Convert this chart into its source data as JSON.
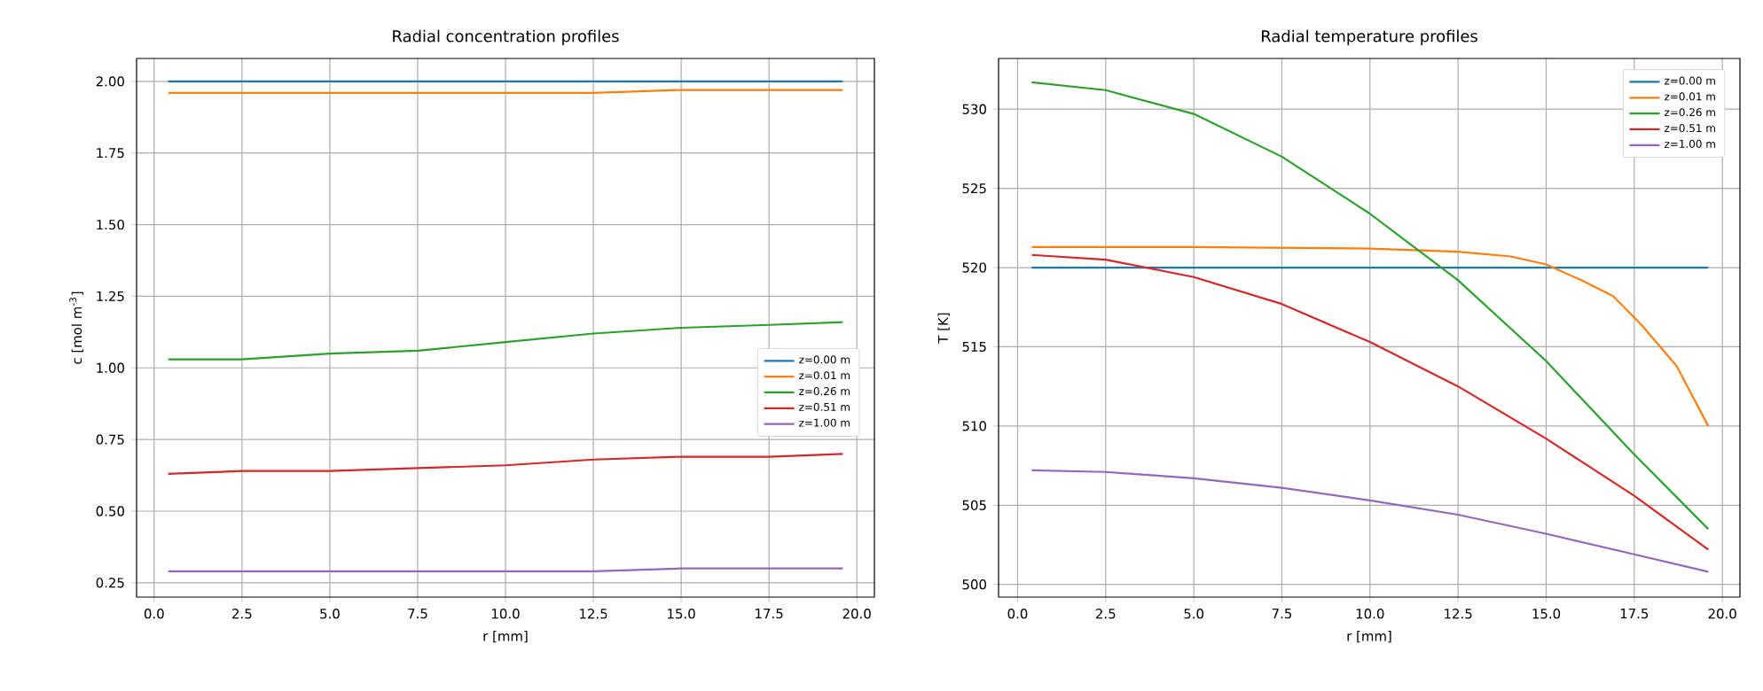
{
  "chart_data": [
    {
      "type": "line",
      "title": "Radial concentration profiles",
      "xlabel": "r [mm]",
      "ylabel": "c [mol m$^{-3}$]",
      "grid": true,
      "legend": "right",
      "xlim": [
        -0.5,
        20.5
      ],
      "ylim": [
        0.2,
        2.08
      ],
      "xticks": [
        {
          "value": 0,
          "label": "0.0"
        },
        {
          "value": 2.5,
          "label": "2.5"
        },
        {
          "value": 5,
          "label": "5.0"
        },
        {
          "value": 7.5,
          "label": "7.5"
        },
        {
          "value": 10,
          "label": "10.0"
        },
        {
          "value": 12.5,
          "label": "12.5"
        },
        {
          "value": 15,
          "label": "15.0"
        },
        {
          "value": 17.5,
          "label": "17.5"
        },
        {
          "value": 20,
          "label": "20.0"
        }
      ],
      "yticks": [
        0.25,
        {
          "value": 0.5,
          "label": "0.50"
        },
        0.75,
        {
          "value": 1,
          "label": "1.00"
        },
        1.25,
        {
          "value": 1.5,
          "label": "1.50"
        },
        1.75,
        {
          "value": 2,
          "label": "2.00"
        }
      ],
      "x": [
        0.4,
        2.5,
        5,
        7.5,
        10,
        12.5,
        15,
        17.5,
        19.6
      ],
      "series": [
        {
          "name": "z=0.00 m",
          "color": "#1f77b4",
          "values": [
            2.0,
            2.0,
            2.0,
            2.0,
            2.0,
            2.0,
            2.0,
            2.0,
            2.0
          ]
        },
        {
          "name": "z=0.01 m",
          "color": "#ff7f0e",
          "values": [
            1.96,
            1.96,
            1.96,
            1.96,
            1.96,
            1.96,
            1.97,
            1.97,
            1.97
          ]
        },
        {
          "name": "z=0.26 m",
          "color": "#2ca02c",
          "values": [
            1.03,
            1.03,
            1.05,
            1.06,
            1.09,
            1.12,
            1.14,
            1.15,
            1.16
          ]
        },
        {
          "name": "z=0.51 m",
          "color": "#d62728",
          "values": [
            0.63,
            0.64,
            0.64,
            0.65,
            0.66,
            0.68,
            0.69,
            0.69,
            0.7
          ]
        },
        {
          "name": "z=1.00 m",
          "color": "#9467bd",
          "values": [
            0.29,
            0.29,
            0.29,
            0.29,
            0.29,
            0.29,
            0.3,
            0.3,
            0.3
          ]
        }
      ]
    },
    {
      "type": "line",
      "title": "Radial temperature profiles",
      "xlabel": "r [mm]",
      "ylabel": "T [K]",
      "grid": true,
      "legend": "top right",
      "xlim": [
        -0.54,
        20.5
      ],
      "ylim": [
        499.2,
        533.2
      ],
      "xticks": [
        {
          "value": 0,
          "label": "0.0"
        },
        {
          "value": 2.5,
          "label": "2.5"
        },
        {
          "value": 5,
          "label": "5.0"
        },
        {
          "value": 7.5,
          "label": "7.5"
        },
        {
          "value": 10,
          "label": "10.0"
        },
        {
          "value": 12.5,
          "label": "12.5"
        },
        {
          "value": 15,
          "label": "15.0"
        },
        {
          "value": 17.5,
          "label": "17.5"
        },
        {
          "value": 20,
          "label": "20.0"
        }
      ],
      "yticks": [
        500,
        505,
        510,
        515,
        520,
        525,
        530
      ],
      "x": [
        0.4,
        2.5,
        5,
        7.5,
        10,
        12.5,
        15,
        17.5,
        19.6
      ],
      "series": [
        {
          "name": "z=0.00 m",
          "color": "#1f77b4",
          "values": [
            520,
            520,
            520,
            520,
            520,
            520,
            520,
            520,
            520
          ]
        },
        {
          "name": "z=0.01 m",
          "color": "#ff7f0e",
          "x": [
            0.4,
            5,
            10,
            12.5,
            14,
            15,
            16,
            16.9,
            17.7,
            18.7,
            19.6
          ],
          "values": [
            521.3,
            521.3,
            521.2,
            521.0,
            520.7,
            520.2,
            519.2,
            518.2,
            516.4,
            513.8,
            510.0
          ]
        },
        {
          "name": "z=0.26 m",
          "color": "#2ca02c",
          "values": [
            531.7,
            531.2,
            529.7,
            527.0,
            523.4,
            519.2,
            514.1,
            508.2,
            503.5
          ]
        },
        {
          "name": "z=0.51 m",
          "color": "#d62728",
          "values": [
            520.8,
            520.5,
            519.4,
            517.7,
            515.3,
            512.5,
            509.2,
            505.6,
            502.2
          ]
        },
        {
          "name": "z=1.00 m",
          "color": "#9467bd",
          "values": [
            507.2,
            507.1,
            506.7,
            506.1,
            505.3,
            504.4,
            503.2,
            501.9,
            500.8
          ]
        }
      ]
    }
  ]
}
